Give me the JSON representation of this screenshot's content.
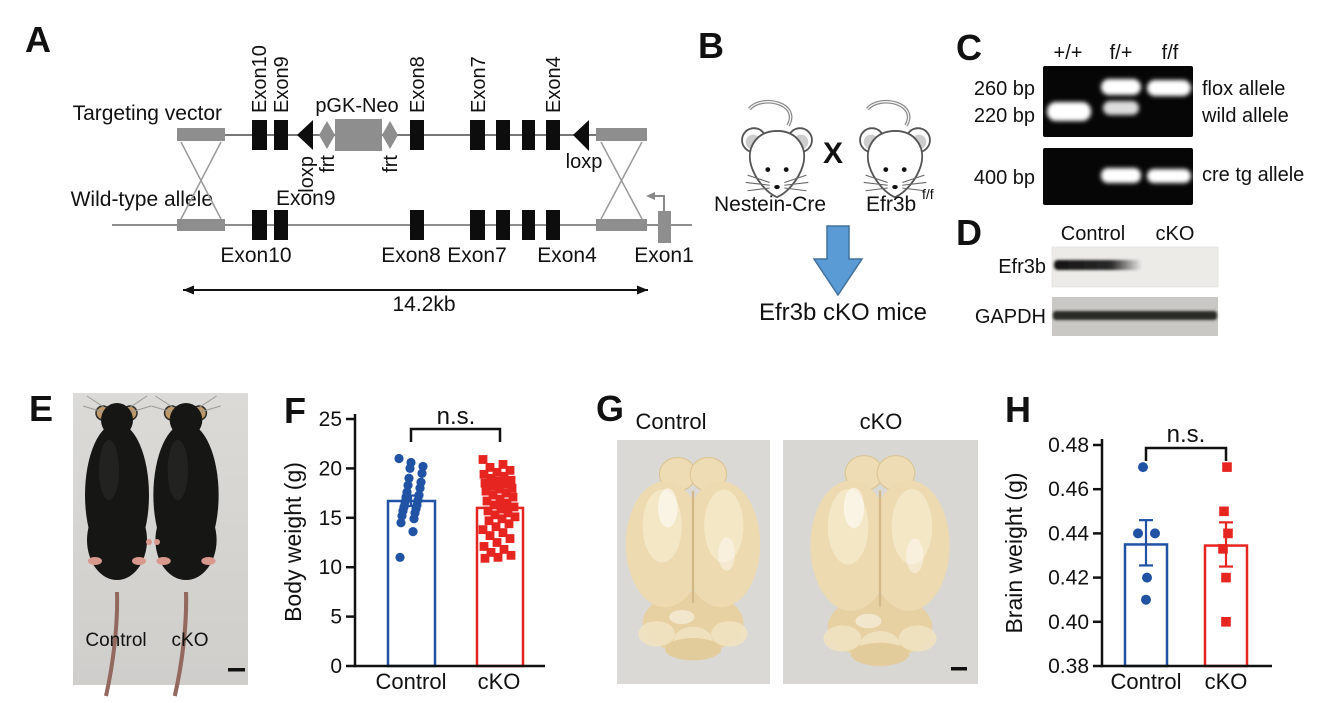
{
  "panels": {
    "a": "A",
    "b": "B",
    "c": "C",
    "d": "D",
    "e": "E",
    "f": "F",
    "g": "G",
    "h": "H"
  },
  "panel_a": {
    "targeting_vector_label": "Targeting vector",
    "wild_type_label": "Wild-type allele",
    "tv_exon_labels": [
      "Exon10",
      "Exon9",
      "Exon8",
      "Exon7",
      "Exon4"
    ],
    "pgk_neo_label": "pGK-Neo",
    "loxp_left_label": "loxp",
    "loxp_right_label": "loxp",
    "frt_labels": [
      "frt",
      "frt"
    ],
    "wt_exon9_label": "Exon9",
    "wt_exon_labels": [
      "Exon10",
      "Exon8",
      "Exon7",
      "Exon4",
      "Exon1"
    ],
    "scale_label": "14.2kb"
  },
  "panel_b": {
    "parent1": "Nestein-Cre",
    "parent2_base": "Efr3b",
    "parent2_sup": "f/f",
    "cross": "X",
    "offspring": "Efr3b cKO mice",
    "cross_color": "#e41a18",
    "arrow_color": "#5b9bd5"
  },
  "panel_c": {
    "lane_labels": [
      "+/+",
      "f/+",
      "f/f"
    ],
    "size_labels": [
      "260 bp",
      "220 bp",
      "400 bp"
    ],
    "allele_labels": [
      "flox allele",
      "wild allele",
      "cre tg allele"
    ]
  },
  "panel_d": {
    "col_labels": [
      "Control",
      "cKO"
    ],
    "row_labels": [
      "Efr3b",
      "GAPDH"
    ]
  },
  "panel_e": {
    "labels": [
      "Control",
      "cKO"
    ]
  },
  "panel_g": {
    "labels": [
      "Control",
      "cKO"
    ]
  },
  "chart_data": [
    {
      "id": "F",
      "type": "bar",
      "title": "",
      "ylabel": "Body weight (g)",
      "xlabel": "",
      "categories": [
        "Control",
        "cKO"
      ],
      "ylim": [
        0,
        25
      ],
      "yticks": [
        0,
        5,
        10,
        15,
        20,
        25
      ],
      "ytick_labels": [
        "0",
        "5",
        "10",
        "15",
        "20",
        "25"
      ],
      "significance": "n.s.",
      "grid": false,
      "bars": [
        {
          "name": "Control",
          "mean": 16.7,
          "ci": [
            16.2,
            17.25
          ],
          "color": "#2053a4"
        },
        {
          "name": "cKO",
          "mean": 16.0,
          "ci": [
            15.55,
            16.45
          ],
          "color": "#e62520"
        }
      ],
      "series": [
        {
          "name": "Control",
          "marker": "circle",
          "color": "#2053a4",
          "values": [
            21.0,
            20.6,
            20.2,
            20.0,
            19.5,
            19.0,
            18.6,
            18.3,
            18.0,
            17.6,
            17.3,
            17.1,
            16.8,
            16.6,
            16.3,
            16.1,
            15.9,
            15.7,
            15.5,
            15.2,
            14.9,
            14.5,
            13.6,
            11.0
          ]
        },
        {
          "name": "cKO",
          "marker": "square",
          "color": "#e62520",
          "values": [
            20.9,
            20.4,
            20.1,
            19.8,
            19.6,
            19.4,
            19.2,
            19.0,
            18.8,
            18.7,
            18.5,
            18.4,
            18.2,
            18.0,
            17.9,
            17.7,
            17.5,
            17.3,
            17.1,
            16.9,
            16.7,
            16.5,
            16.3,
            16.1,
            15.9,
            15.7,
            15.5,
            15.3,
            15.1,
            14.9,
            14.7,
            14.4,
            14.1,
            13.8,
            13.5,
            13.2,
            12.9,
            12.5,
            12.1,
            11.8,
            11.5,
            11.2,
            11.0,
            10.9
          ]
        }
      ]
    },
    {
      "id": "H",
      "type": "bar",
      "title": "",
      "ylabel": "Brain weight (g)",
      "xlabel": "",
      "categories": [
        "Control",
        "cKO"
      ],
      "ylim": [
        0.38,
        0.48
      ],
      "yticks": [
        0.38,
        0.4,
        0.42,
        0.44,
        0.46,
        0.48
      ],
      "ytick_labels": [
        "0.38",
        "0.40",
        "0.42",
        "0.44",
        "0.46",
        "0.48"
      ],
      "significance": "n.s.",
      "grid": false,
      "bars": [
        {
          "name": "Control",
          "mean": 0.435,
          "ci": [
            0.4255,
            0.446
          ],
          "color": "#2053a4"
        },
        {
          "name": "cKO",
          "mean": 0.4345,
          "ci": [
            0.425,
            0.445
          ],
          "color": "#e62520"
        }
      ],
      "series": [
        {
          "name": "Control",
          "marker": "circle",
          "color": "#2053a4",
          "values": [
            0.47,
            0.44,
            0.44,
            0.42,
            0.41
          ]
        },
        {
          "name": "cKO",
          "marker": "square",
          "color": "#e62520",
          "values": [
            0.47,
            0.45,
            0.44,
            0.433,
            0.42,
            0.4
          ]
        }
      ]
    }
  ]
}
